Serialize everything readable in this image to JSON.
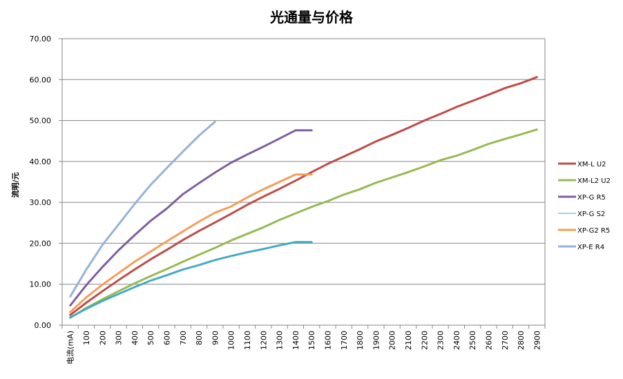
{
  "chart_data": {
    "type": "line",
    "title": "光通量与价格",
    "ylabel": "流明/元",
    "xlabel": "",
    "ylim": [
      0,
      70
    ],
    "yticks": [
      "0.00",
      "10.00",
      "20.00",
      "30.00",
      "40.00",
      "50.00",
      "60.00",
      "70.00"
    ],
    "grid": true,
    "legend_position": "right",
    "categories": [
      "电流(mA)",
      "100",
      "200",
      "300",
      "400",
      "500",
      "600",
      "700",
      "800",
      "900",
      "1000",
      "1100",
      "1200",
      "1300",
      "1400",
      "1500",
      "1600",
      "1700",
      "1800",
      "1900",
      "2000",
      "2100",
      "2200",
      "2300",
      "2400",
      "2500",
      "2600",
      "2700",
      "2800",
      "2900"
    ],
    "series": [
      {
        "name": "XM-L U2",
        "color": "#be4b48",
        "values": [
          2.5,
          5.5,
          8.3,
          11.0,
          13.6,
          16.1,
          18.4,
          20.8,
          23.0,
          25.1,
          27.2,
          29.4,
          31.4,
          33.3,
          35.3,
          37.4,
          39.4,
          41.2,
          43.0,
          44.9,
          46.5,
          48.2,
          50.0,
          51.6,
          53.3,
          54.8,
          56.3,
          57.9,
          59.1,
          60.6
        ]
      },
      {
        "name": "XM-L2 U2",
        "color": "#98b954",
        "values": [
          1.8,
          4.2,
          6.3,
          8.3,
          10.2,
          12.0,
          13.7,
          15.5,
          17.2,
          18.9,
          20.7,
          22.3,
          23.9,
          25.7,
          27.3,
          28.9,
          30.3,
          31.9,
          33.2,
          34.8,
          36.1,
          37.4,
          38.8,
          40.3,
          41.4,
          42.8,
          44.3,
          45.5,
          46.6,
          47.8
        ]
      },
      {
        "name": "XP-G R5",
        "color": "#7d5fa0",
        "values": [
          4.8,
          9.8,
          14.2,
          18.3,
          22.0,
          25.5,
          28.5,
          32.0,
          34.7,
          37.3,
          39.7,
          41.7,
          43.6,
          45.6,
          47.6,
          47.6,
          null,
          null,
          null,
          null,
          null,
          null,
          null,
          null,
          null,
          null,
          null,
          null,
          null,
          null
        ]
      },
      {
        "name": "XP-G S2",
        "color": "#46aac4",
        "values": [
          1.9,
          4.0,
          5.9,
          7.6,
          9.3,
          10.9,
          12.2,
          13.6,
          14.7,
          15.9,
          16.9,
          17.8,
          18.6,
          19.5,
          20.3,
          20.3,
          null,
          null,
          null,
          null,
          null,
          null,
          null,
          null,
          null,
          null,
          null,
          null,
          null,
          null
        ]
      },
      {
        "name": "XP-G2 R5",
        "color": "#f59d56",
        "values": [
          3.2,
          6.8,
          9.9,
          12.7,
          15.5,
          18.0,
          20.5,
          22.9,
          25.3,
          27.5,
          29.0,
          31.2,
          33.2,
          35.0,
          36.8,
          36.8,
          null,
          null,
          null,
          null,
          null,
          null,
          null,
          null,
          null,
          null,
          null,
          null,
          null,
          null
        ]
      },
      {
        "name": "XP-E R4",
        "color": "#95b3d7",
        "values": [
          7.0,
          13.6,
          19.6,
          24.6,
          29.6,
          34.3,
          38.4,
          42.4,
          46.3,
          49.7,
          null,
          null,
          null,
          null,
          null,
          null,
          null,
          null,
          null,
          null,
          null,
          null,
          null,
          null,
          null,
          null,
          null,
          null,
          null,
          null
        ]
      }
    ]
  }
}
